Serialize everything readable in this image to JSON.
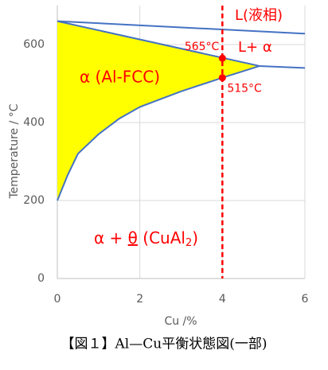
{
  "chart_data": {
    "type": "line",
    "x_label": "Cu /%",
    "y_label": "Temperature / °C",
    "caption": "【図１】Al—Cu平衡状態図(一部)",
    "xlim": [
      0,
      6
    ],
    "ylim": [
      0,
      700
    ],
    "xticks": [
      0,
      2,
      4,
      6
    ],
    "yticks": [
      0,
      200,
      400,
      600
    ],
    "grid": true,
    "series": [
      {
        "name": null,
        "color": "#4472c4",
        "x": [
          0,
          6
        ],
        "values": [
          660,
          628
        ]
      },
      {
        "name": null,
        "color": "#4472c4",
        "x": [
          0,
          4.9
        ],
        "values": [
          660,
          545
        ]
      },
      {
        "name": null,
        "color": "#4472c4",
        "x": [
          0,
          0.25,
          0.5,
          1,
          1.5,
          2,
          3,
          4,
          4.9
        ],
        "values": [
          200,
          265,
          320,
          370,
          410,
          440,
          480,
          515,
          545
        ]
      },
      {
        "name": null,
        "color": "#4472c4",
        "x": [
          4.9,
          5.3,
          6
        ],
        "values": [
          545,
          543,
          540
        ]
      }
    ],
    "fill_color": "#ffff00",
    "vline": {
      "x": 4,
      "color": "#ff0000"
    },
    "points": [
      {
        "x": 4,
        "y": 565,
        "label": "565°C"
      },
      {
        "x": 4,
        "y": 515,
        "label": "515°C"
      }
    ],
    "annotations": [
      "L(液相)",
      "L+ α",
      "α (Al-FCC)"
    ],
    "phase_label": [
      "α + ",
      "θ",
      " (CuAl",
      "2",
      ")"
    ]
  }
}
